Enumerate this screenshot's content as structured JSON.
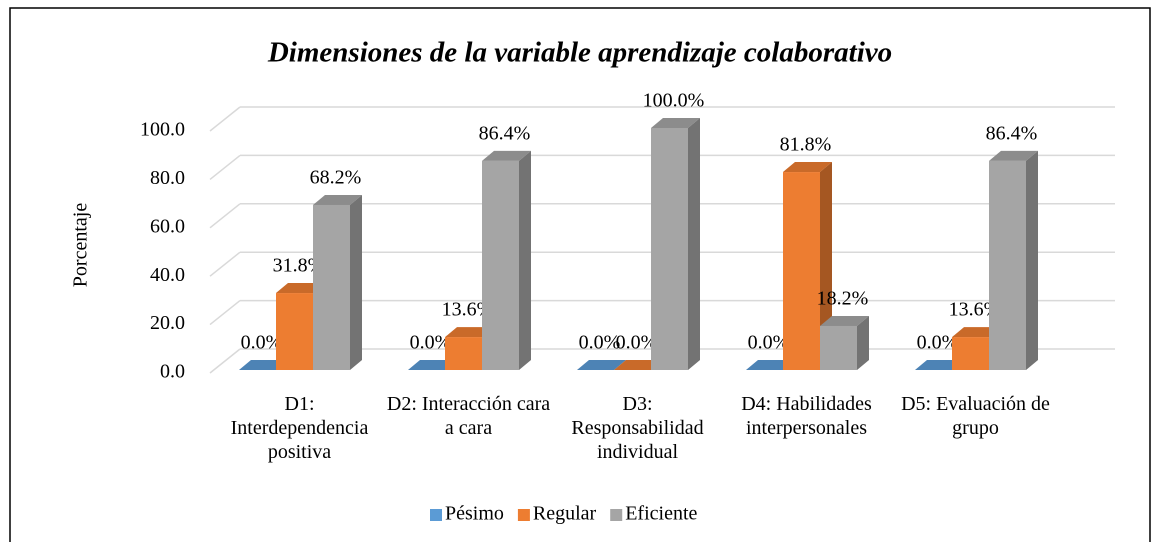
{
  "chart_data": {
    "type": "bar3d",
    "title": "Dimensiones de la variable aprendizaje colaborativo",
    "y_label": "Porcentaje",
    "categories": [
      "D1: Interdependencia positiva",
      "D2: Interacción cara a cara",
      "D3: Responsabilidad individual",
      "D4: Habilidades interpersonales",
      "D5: Evaluación de grupo"
    ],
    "series": [
      {
        "name": "Pésimo",
        "color": "#5b9bd5",
        "values": [
          0,
          0,
          0,
          0,
          0
        ],
        "value_labels": [
          "0.0%",
          "0.0%",
          "0.0%",
          "0.0%",
          "0.0%"
        ]
      },
      {
        "name": "Regular",
        "color": "#ed7d31",
        "values": [
          31.8,
          13.6,
          0,
          81.8,
          13.6
        ],
        "value_labels": [
          "31.8%",
          "13.6%",
          "0.0%",
          "81.8%",
          "13.6%"
        ]
      },
      {
        "name": "Eficiente",
        "color": "#a5a5a5",
        "values": [
          68.2,
          86.4,
          100,
          18.2,
          86.4
        ],
        "value_labels": [
          "68.2%",
          "86.4%",
          "100.0%",
          "18.2%",
          "86.4%"
        ]
      }
    ],
    "ylim": [
      0,
      100
    ],
    "yticks": [
      {
        "value": 0,
        "label": "0.0"
      },
      {
        "value": 20,
        "label": "20.0"
      },
      {
        "value": 40,
        "label": "40.0"
      },
      {
        "value": 60,
        "label": "60.0"
      },
      {
        "value": 80,
        "label": "80.0"
      },
      {
        "value": 100,
        "label": "100.0"
      }
    ],
    "grid": true,
    "legend": "bottom"
  }
}
